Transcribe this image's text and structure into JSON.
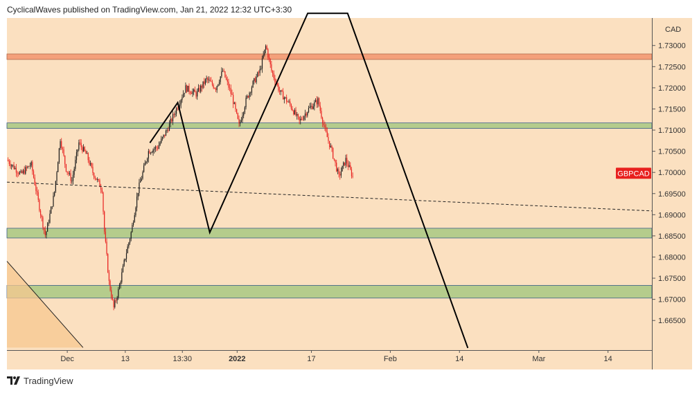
{
  "header": {
    "publisher": "CyclicalWaves published on TradingView.com, Jan 21, 2022 12:32 UTC+3:30"
  },
  "footer": {
    "brand": "TradingView"
  },
  "colors": {
    "background": "#fbe0c0",
    "bull": "#1a1a1a",
    "bear": "#e8201e",
    "resistance_zone": "#f4a07a",
    "support_zone": "#b5cc8c",
    "symbol_badge": "#e8201e"
  },
  "chart_data": {
    "type": "candlestick",
    "symbol": "GBPCAD",
    "currency": "CAD",
    "ylim": [
      1.658,
      1.7365
    ],
    "y_ticks": [
      1.73,
      1.725,
      1.72,
      1.715,
      1.71,
      1.705,
      1.7,
      1.695,
      1.69,
      1.685,
      1.68,
      1.675,
      1.67,
      1.665
    ],
    "y_tick_labels": [
      "1.73000",
      "1.72500",
      "1.72000",
      "1.71500",
      "1.71000",
      "1.70500",
      "1.70000",
      "1.69500",
      "1.69000",
      "1.68500",
      "1.68000",
      "1.67500",
      "1.67000",
      "1.66500"
    ],
    "x_tick_labels": [
      {
        "label": "Dec",
        "bold": false
      },
      {
        "label": "13",
        "bold": false
      },
      {
        "label": "13:30",
        "bold": false
      },
      {
        "label": "2022",
        "bold": true
      },
      {
        "label": "17",
        "bold": false
      },
      {
        "label": "Feb",
        "bold": false
      },
      {
        "label": "14",
        "bold": false
      },
      {
        "label": "Mar",
        "bold": false
      },
      {
        "label": "14",
        "bold": false
      }
    ],
    "zones": [
      {
        "kind": "resistance",
        "top": 1.728,
        "bottom": 1.7267
      },
      {
        "kind": "support",
        "top": 1.7117,
        "bottom": 1.7104
      },
      {
        "kind": "support",
        "top": 1.6868,
        "bottom": 1.6845
      },
      {
        "kind": "support",
        "top": 1.6733,
        "bottom": 1.6703
      }
    ],
    "price_path": [
      {
        "x": 0.0,
        "y": 1.703
      },
      {
        "x": 3.0,
        "y": 1.6995
      },
      {
        "x": 5.2,
        "y": 1.702
      },
      {
        "x": 7.3,
        "y": 1.69
      },
      {
        "x": 8.3,
        "y": 1.685
      },
      {
        "x": 10.2,
        "y": 1.695
      },
      {
        "x": 11.5,
        "y": 1.708
      },
      {
        "x": 12.7,
        "y": 1.701
      },
      {
        "x": 14.0,
        "y": 1.698
      },
      {
        "x": 15.5,
        "y": 1.707
      },
      {
        "x": 17.2,
        "y": 1.704
      },
      {
        "x": 18.5,
        "y": 1.7
      },
      {
        "x": 20.5,
        "y": 1.696
      },
      {
        "x": 21.0,
        "y": 1.686
      },
      {
        "x": 22.0,
        "y": 1.674
      },
      {
        "x": 23.0,
        "y": 1.668
      },
      {
        "x": 24.0,
        "y": 1.672
      },
      {
        "x": 25.5,
        "y": 1.68
      },
      {
        "x": 26.8,
        "y": 1.686
      },
      {
        "x": 28.3,
        "y": 1.696
      },
      {
        "x": 30.5,
        "y": 1.705
      },
      {
        "x": 32.5,
        "y": 1.706
      },
      {
        "x": 34.5,
        "y": 1.71
      },
      {
        "x": 36.5,
        "y": 1.715
      },
      {
        "x": 38.5,
        "y": 1.72
      },
      {
        "x": 40.8,
        "y": 1.7185
      },
      {
        "x": 43.0,
        "y": 1.722
      },
      {
        "x": 45.0,
        "y": 1.72
      },
      {
        "x": 46.5,
        "y": 1.724
      },
      {
        "x": 48.5,
        "y": 1.718
      },
      {
        "x": 50.0,
        "y": 1.711
      },
      {
        "x": 51.5,
        "y": 1.717
      },
      {
        "x": 53.0,
        "y": 1.721
      },
      {
        "x": 54.5,
        "y": 1.724
      },
      {
        "x": 55.8,
        "y": 1.73
      },
      {
        "x": 57.0,
        "y": 1.724
      },
      {
        "x": 58.8,
        "y": 1.719
      },
      {
        "x": 61.0,
        "y": 1.716
      },
      {
        "x": 63.0,
        "y": 1.712
      },
      {
        "x": 65.0,
        "y": 1.715
      },
      {
        "x": 67.0,
        "y": 1.717
      },
      {
        "x": 68.5,
        "y": 1.71
      },
      {
        "x": 70.0,
        "y": 1.705
      },
      {
        "x": 71.5,
        "y": 1.699
      },
      {
        "x": 73.0,
        "y": 1.703
      },
      {
        "x": 74.5,
        "y": 1.699
      }
    ],
    "wave_drawing": [
      {
        "x": 30.8,
        "y": 1.707
      },
      {
        "x": 36.8,
        "y": 1.7165
      },
      {
        "x": 43.7,
        "y": 1.6858
      },
      {
        "x": 64.8,
        "y": 1.7376
      },
      {
        "x": 73.4,
        "y": 1.7376
      },
      {
        "x": 99.3,
        "y": 1.6585
      }
    ],
    "trendline_dashed": [
      {
        "x": 0.0,
        "y": 1.6977
      },
      {
        "x": 139.0,
        "y": 1.6909
      }
    ],
    "trendline_solid": [
      {
        "x": 0.0,
        "y": 1.679
      },
      {
        "x": 16.4,
        "y": 1.6586
      }
    ],
    "last_price": 1.6998
  }
}
